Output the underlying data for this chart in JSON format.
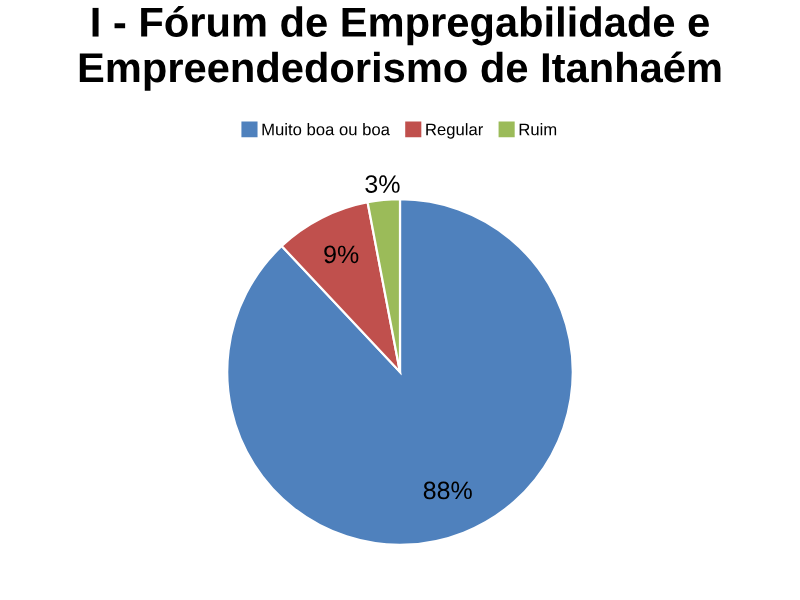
{
  "chart_data": {
    "type": "pie",
    "title": "I - Fórum de Empregabilidade e Empreendedorismo de Itanhaém",
    "categories": [
      "Muito boa ou boa",
      "Regular",
      "Ruim"
    ],
    "values": [
      88,
      9,
      3
    ],
    "value_labels": [
      "88%",
      "9%",
      "3%"
    ],
    "colors": [
      "#4f81bd",
      "#c0504d",
      "#9bbb59"
    ],
    "legend": "top"
  }
}
